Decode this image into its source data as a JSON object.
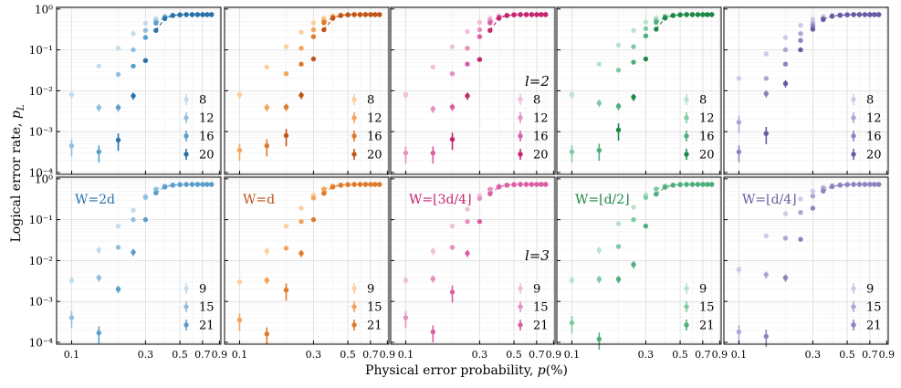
{
  "figure": {
    "ylabel_main": "Logical error rate, ",
    "ylabel_var": "p",
    "ylabel_sub": "L",
    "xlabel_main": "Physical error probability, ",
    "xlabel_var": "p",
    "xlabel_unit": "(%)"
  },
  "chart_data": {
    "type": "scatter",
    "x_scale": "log",
    "y_scale": "log",
    "xlim": [
      0.08,
      0.92
    ],
    "ylim": [
      9e-05,
      1.1
    ],
    "x_ticks": [
      0.1,
      0.3,
      0.5,
      0.7,
      0.9
    ],
    "x_tick_labels": [
      "0.1",
      "0.3",
      "0.5",
      "0.7",
      "0.9"
    ],
    "y_ticks": [
      1,
      0.1,
      0.01,
      0.001,
      0.0001
    ],
    "y_tick_labels": [
      "10⁰",
      "10⁻¹",
      "10⁻²",
      "10⁻³",
      "10⁻⁴"
    ],
    "rows": [
      {
        "row_label": "l=2",
        "distances": [
          8,
          12,
          16,
          20
        ]
      },
      {
        "row_label": "l=3",
        "distances": [
          9,
          15,
          21
        ]
      }
    ],
    "columns": [
      {
        "panel_label": "W=2d",
        "colors": [
          "#c5dcec",
          "#8fbfde",
          "#5a9ecb",
          "#2a71a8"
        ]
      },
      {
        "panel_label": "W=d",
        "colors": [
          "#fbcf9e",
          "#f4a45a",
          "#e07a2a",
          "#c0531a"
        ]
      },
      {
        "panel_label": "W=⌊3d/4⌋",
        "colors": [
          "#f1bfdc",
          "#e690c2",
          "#db5ea4",
          "#c8246d"
        ]
      },
      {
        "panel_label": "W=⌊d/2⌋",
        "colors": [
          "#b8e3cb",
          "#7fcaa2",
          "#4fae7b",
          "#1d8746"
        ]
      },
      {
        "panel_label": "W=⌊d/4⌋",
        "colors": [
          "#cfc9e6",
          "#ada6d2",
          "#8d83bf",
          "#6a5aa1"
        ]
      }
    ],
    "x": [
      0.1,
      0.15,
      0.2,
      0.25,
      0.3,
      0.35,
      0.4,
      0.45,
      0.5,
      0.55,
      0.6,
      0.65,
      0.7,
      0.75,
      0.8
    ],
    "panels": [
      [
        [
          0.008,
          0.04,
          0.11,
          0.25,
          0.45,
          0.58,
          0.66,
          0.7,
          0.72,
          0.73,
          0.73,
          0.73,
          0.73,
          0.73,
          0.73
        ],
        [
          0.00045,
          0.0039,
          0.025,
          0.1,
          0.3,
          0.5,
          0.64,
          0.7,
          0.72,
          0.73,
          0.73,
          0.73,
          0.73,
          0.73,
          0.73
        ],
        [
          null,
          0.00032,
          0.0039,
          0.04,
          0.2,
          0.45,
          0.62,
          0.7,
          0.72,
          0.73,
          0.73,
          0.73,
          0.73,
          0.73,
          0.73
        ],
        [
          null,
          null,
          0.00062,
          0.0075,
          0.055,
          0.3,
          0.58,
          0.69,
          0.72,
          0.73,
          0.73,
          0.73,
          0.73,
          0.73,
          0.73
        ]
      ],
      [
        [
          0.008,
          0.038,
          0.12,
          0.27,
          0.46,
          0.6,
          0.67,
          0.7,
          0.72,
          0.73,
          0.73,
          0.73,
          0.73,
          0.73,
          0.73
        ],
        [
          0.00035,
          0.0039,
          0.026,
          0.11,
          0.31,
          0.51,
          0.64,
          0.7,
          0.72,
          0.73,
          0.73,
          0.73,
          0.73,
          0.73,
          0.73
        ],
        [
          null,
          0.00045,
          0.004,
          0.045,
          0.21,
          0.46,
          0.62,
          0.7,
          0.72,
          0.73,
          0.73,
          0.73,
          0.73,
          0.73,
          0.73
        ],
        [
          null,
          null,
          0.0008,
          0.0078,
          0.06,
          0.31,
          0.59,
          0.69,
          0.72,
          0.73,
          0.73,
          0.73,
          0.73,
          0.73,
          0.73
        ]
      ],
      [
        [
          0.008,
          0.038,
          0.12,
          0.28,
          0.47,
          0.6,
          0.67,
          0.7,
          0.72,
          0.73,
          0.73,
          0.73,
          0.73,
          0.73,
          0.73
        ],
        [
          0.0003,
          0.0036,
          0.026,
          0.11,
          0.31,
          0.52,
          0.64,
          0.7,
          0.72,
          0.73,
          0.73,
          0.73,
          0.73,
          0.73,
          0.73
        ],
        [
          null,
          0.0003,
          0.004,
          0.045,
          0.21,
          0.46,
          0.63,
          0.7,
          0.72,
          0.73,
          0.73,
          0.73,
          0.73,
          0.73,
          0.73
        ],
        [
          null,
          null,
          0.00065,
          0.0075,
          0.058,
          0.3,
          0.59,
          0.69,
          0.72,
          0.73,
          0.73,
          0.73,
          0.73,
          0.73,
          0.73
        ]
      ],
      [
        [
          0.008,
          0.045,
          0.13,
          0.3,
          0.48,
          0.6,
          0.67,
          0.7,
          0.72,
          0.73,
          0.73,
          0.73,
          0.73,
          0.73,
          0.73
        ],
        [
          0.00032,
          0.005,
          0.032,
          0.12,
          0.33,
          0.52,
          0.65,
          0.7,
          0.72,
          0.73,
          0.73,
          0.73,
          0.73,
          0.73,
          0.73
        ],
        [
          null,
          0.00035,
          0.0042,
          0.05,
          0.22,
          0.47,
          0.63,
          0.7,
          0.72,
          0.73,
          0.73,
          0.73,
          0.73,
          0.73,
          0.73
        ],
        [
          null,
          null,
          0.0011,
          0.007,
          0.06,
          0.32,
          0.6,
          0.69,
          0.72,
          0.73,
          0.73,
          0.73,
          0.73,
          0.73,
          0.73
        ]
      ],
      [
        [
          0.02,
          0.08,
          0.2,
          0.4,
          0.56,
          0.65,
          0.7,
          0.72,
          0.73,
          0.73,
          0.73,
          0.73,
          0.73,
          0.73,
          0.73
        ],
        [
          0.0017,
          0.02,
          0.1,
          0.25,
          0.45,
          0.6,
          0.68,
          0.71,
          0.72,
          0.73,
          0.73,
          0.73,
          0.73,
          0.73,
          0.73
        ],
        [
          0.00032,
          0.0085,
          0.045,
          0.17,
          0.38,
          0.57,
          0.67,
          0.71,
          0.72,
          0.73,
          0.73,
          0.73,
          0.73,
          0.73,
          0.73
        ],
        [
          null,
          0.0009,
          0.015,
          0.1,
          0.32,
          0.55,
          0.66,
          0.7,
          0.72,
          0.73,
          0.73,
          0.73,
          0.73,
          0.73,
          0.73
        ]
      ],
      [
        [
          0.0033,
          0.018,
          0.07,
          0.17,
          0.38,
          0.55,
          0.65,
          0.7,
          0.72,
          0.73,
          0.73,
          0.73,
          0.73,
          0.73,
          0.73
        ],
        [
          0.0004,
          0.0038,
          0.021,
          0.1,
          0.35,
          0.56,
          0.66,
          0.7,
          0.72,
          0.73,
          0.73,
          0.73,
          0.73,
          0.73,
          0.73
        ],
        [
          null,
          0.00017,
          0.002,
          0.016,
          0.1,
          0.45,
          0.63,
          0.7,
          0.72,
          0.73,
          0.73,
          0.73,
          0.73,
          0.73,
          0.73
        ]
      ],
      [
        [
          0.003,
          0.017,
          0.07,
          0.19,
          0.4,
          0.56,
          0.65,
          0.7,
          0.72,
          0.73,
          0.73,
          0.73,
          0.73,
          0.73,
          0.73
        ],
        [
          0.00035,
          0.0033,
          0.02,
          0.09,
          0.34,
          0.56,
          0.66,
          0.7,
          0.72,
          0.73,
          0.73,
          0.73,
          0.73,
          0.73,
          0.73
        ],
        [
          null,
          0.00016,
          0.0019,
          0.015,
          0.1,
          0.44,
          0.63,
          0.7,
          0.72,
          0.73,
          0.73,
          0.73,
          0.73,
          0.73,
          0.73
        ]
      ],
      [
        [
          0.0033,
          0.017,
          0.07,
          0.18,
          0.39,
          0.56,
          0.65,
          0.7,
          0.72,
          0.73,
          0.73,
          0.73,
          0.73,
          0.73,
          0.73
        ],
        [
          0.0004,
          0.0036,
          0.021,
          0.09,
          0.33,
          0.55,
          0.66,
          0.7,
          0.72,
          0.73,
          0.73,
          0.73,
          0.73,
          0.73,
          0.73
        ],
        [
          null,
          0.00018,
          0.0017,
          0.015,
          0.09,
          0.43,
          0.63,
          0.7,
          0.72,
          0.73,
          0.73,
          0.73,
          0.73,
          0.73,
          0.73
        ]
      ],
      [
        [
          0.0033,
          0.018,
          0.08,
          0.2,
          0.41,
          0.57,
          0.66,
          0.7,
          0.72,
          0.73,
          0.73,
          0.73,
          0.73,
          0.73,
          0.73
        ],
        [
          0.0003,
          0.0035,
          0.022,
          0.1,
          0.35,
          0.56,
          0.66,
          0.7,
          0.72,
          0.73,
          0.73,
          0.73,
          0.73,
          0.73,
          0.73
        ],
        [
          null,
          0.00012,
          0.0035,
          0.008,
          0.07,
          0.42,
          0.62,
          0.7,
          0.72,
          0.73,
          0.73,
          0.73,
          0.73,
          0.73,
          0.73
        ]
      ],
      [
        [
          0.006,
          0.04,
          0.14,
          0.32,
          0.5,
          0.62,
          0.68,
          0.71,
          0.72,
          0.73,
          0.73,
          0.73,
          0.73,
          0.73,
          0.73
        ],
        [
          0.00018,
          0.0045,
          0.035,
          0.15,
          0.38,
          0.58,
          0.67,
          0.7,
          0.72,
          0.73,
          0.73,
          0.73,
          0.73,
          0.73,
          0.73
        ],
        [
          null,
          0.00014,
          0.0038,
          0.033,
          0.19,
          0.5,
          0.64,
          0.7,
          0.72,
          0.73,
          0.73,
          0.73,
          0.73,
          0.73,
          0.73
        ]
      ]
    ]
  }
}
